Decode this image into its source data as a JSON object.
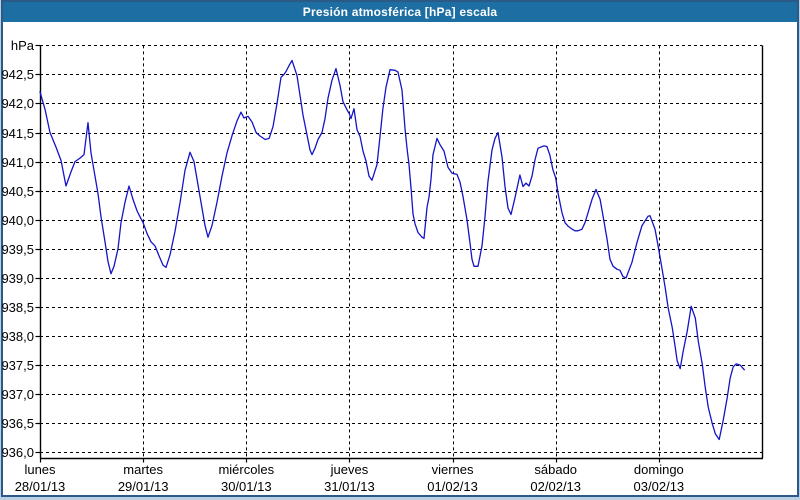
{
  "window": {
    "title": "Presión atmosférica [hPa] escala"
  },
  "colors": {
    "titlebar_bg": "#1d6fa3",
    "titlebar_text": "#ffffff",
    "window_border": "#2a5a85",
    "outer_bg": "#b9cfe6",
    "plot_bg": "#ffffff",
    "grid": "#000000",
    "series_line": "#1414c8",
    "text": "#000000"
  },
  "chart_data": {
    "type": "line",
    "title": "Presión atmosférica [hPa] escala",
    "ylabel": "hPa",
    "xlabel": "",
    "grid": "dashed",
    "legend": "none",
    "ylim": [
      935.9,
      943.0
    ],
    "y_tick_step": 0.5,
    "y_ticks": [
      {
        "value": 943.0,
        "label": ""
      },
      {
        "value": 942.5,
        "label": "942,5"
      },
      {
        "value": 942.0,
        "label": "942,0"
      },
      {
        "value": 941.5,
        "label": "941,5"
      },
      {
        "value": 941.0,
        "label": "941,0"
      },
      {
        "value": 940.5,
        "label": "940,5"
      },
      {
        "value": 940.0,
        "label": "940,0"
      },
      {
        "value": 939.5,
        "label": "939,5"
      },
      {
        "value": 939.0,
        "label": "939,0"
      },
      {
        "value": 938.5,
        "label": "938,5"
      },
      {
        "value": 938.0,
        "label": "938,0"
      },
      {
        "value": 937.5,
        "label": "937,5"
      },
      {
        "value": 937.0,
        "label": "937,0"
      },
      {
        "value": 936.5,
        "label": "936,5"
      },
      {
        "value": 936.0,
        "label": "936,0"
      }
    ],
    "x_days": [
      {
        "name": "lunes",
        "date": "28/01/13"
      },
      {
        "name": "martes",
        "date": "29/01/13"
      },
      {
        "name": "miércoles",
        "date": "30/01/13"
      },
      {
        "name": "jueves",
        "date": "31/01/13"
      },
      {
        "name": "viernes",
        "date": "01/02/13"
      },
      {
        "name": "sábado",
        "date": "02/02/13"
      },
      {
        "name": "domingo",
        "date": "03/02/13"
      }
    ],
    "xlim_days": [
      0,
      7
    ],
    "series": [
      {
        "name": "Presión atmosférica",
        "unit": "hPa",
        "color": "#1414c8",
        "points": [
          [
            0,
            942.2
          ],
          [
            0.048,
            941.9
          ],
          [
            0.097,
            941.5
          ],
          [
            0.155,
            941.25
          ],
          [
            0.204,
            941.02
          ],
          [
            0.252,
            940.58
          ],
          [
            0.3,
            940.82
          ],
          [
            0.339,
            941.0
          ],
          [
            0.388,
            941.06
          ],
          [
            0.427,
            941.12
          ],
          [
            0.465,
            941.67
          ],
          [
            0.494,
            941.15
          ],
          [
            0.524,
            940.85
          ],
          [
            0.562,
            940.45
          ],
          [
            0.591,
            940.05
          ],
          [
            0.63,
            939.62
          ],
          [
            0.659,
            939.28
          ],
          [
            0.688,
            939.07
          ],
          [
            0.717,
            939.2
          ],
          [
            0.756,
            939.5
          ],
          [
            0.785,
            939.95
          ],
          [
            0.824,
            940.3
          ],
          [
            0.863,
            940.58
          ],
          [
            0.902,
            940.35
          ],
          [
            0.941,
            940.15
          ],
          [
            0.97,
            940.05
          ],
          [
            1.0,
            939.95
          ],
          [
            1.038,
            939.76
          ],
          [
            1.076,
            939.62
          ],
          [
            1.115,
            939.55
          ],
          [
            1.154,
            939.38
          ],
          [
            1.193,
            939.22
          ],
          [
            1.222,
            939.18
          ],
          [
            1.261,
            939.4
          ],
          [
            1.309,
            939.8
          ],
          [
            1.358,
            940.3
          ],
          [
            1.406,
            940.85
          ],
          [
            1.454,
            941.16
          ],
          [
            1.493,
            941.0
          ],
          [
            1.532,
            940.6
          ],
          [
            1.571,
            940.2
          ],
          [
            1.6,
            939.9
          ],
          [
            1.629,
            939.7
          ],
          [
            1.668,
            939.9
          ],
          [
            1.716,
            940.3
          ],
          [
            1.765,
            940.75
          ],
          [
            1.813,
            941.15
          ],
          [
            1.862,
            941.45
          ],
          [
            1.91,
            941.7
          ],
          [
            1.949,
            941.85
          ],
          [
            1.978,
            941.75
          ],
          [
            2.017,
            941.78
          ],
          [
            2.056,
            941.68
          ],
          [
            2.095,
            941.5
          ],
          [
            2.133,
            941.44
          ],
          [
            2.182,
            941.38
          ],
          [
            2.221,
            941.4
          ],
          [
            2.259,
            941.6
          ],
          [
            2.298,
            942.0
          ],
          [
            2.337,
            942.45
          ],
          [
            2.366,
            942.5
          ],
          [
            2.385,
            942.55
          ],
          [
            2.414,
            942.65
          ],
          [
            2.443,
            942.74
          ],
          [
            2.492,
            942.48
          ],
          [
            2.521,
            942.14
          ],
          [
            2.55,
            941.8
          ],
          [
            2.589,
            941.46
          ],
          [
            2.618,
            941.2
          ],
          [
            2.637,
            941.12
          ],
          [
            2.666,
            941.23
          ],
          [
            2.695,
            941.38
          ],
          [
            2.734,
            941.5
          ],
          [
            2.763,
            941.74
          ],
          [
            2.792,
            942.09
          ],
          [
            2.831,
            942.4
          ],
          [
            2.87,
            942.6
          ],
          [
            2.909,
            942.31
          ],
          [
            2.938,
            942.03
          ],
          [
            2.977,
            941.89
          ],
          [
            3.0,
            941.82
          ],
          [
            3.015,
            941.74
          ],
          [
            3.044,
            941.91
          ],
          [
            3.073,
            941.55
          ],
          [
            3.103,
            941.43
          ],
          [
            3.132,
            941.18
          ],
          [
            3.161,
            941.01
          ],
          [
            3.19,
            940.75
          ],
          [
            3.219,
            940.68
          ],
          [
            3.267,
            940.95
          ],
          [
            3.296,
            941.43
          ],
          [
            3.325,
            941.91
          ],
          [
            3.355,
            942.28
          ],
          [
            3.393,
            942.58
          ],
          [
            3.442,
            942.57
          ],
          [
            3.471,
            942.54
          ],
          [
            3.51,
            942.23
          ],
          [
            3.539,
            941.57
          ],
          [
            3.558,
            941.23
          ],
          [
            3.578,
            940.95
          ],
          [
            3.597,
            940.55
          ],
          [
            3.616,
            940.1
          ],
          [
            3.636,
            939.93
          ],
          [
            3.665,
            939.78
          ],
          [
            3.704,
            939.7
          ],
          [
            3.723,
            939.68
          ],
          [
            3.752,
            940.21
          ],
          [
            3.772,
            940.4
          ],
          [
            3.791,
            940.7
          ],
          [
            3.81,
            941.12
          ],
          [
            3.849,
            941.4
          ],
          [
            3.878,
            941.29
          ],
          [
            3.917,
            941.18
          ],
          [
            3.956,
            940.9
          ],
          [
            3.995,
            940.8
          ],
          [
            4.043,
            940.78
          ],
          [
            4.072,
            940.65
          ],
          [
            4.101,
            940.4
          ],
          [
            4.14,
            940.0
          ],
          [
            4.169,
            939.6
          ],
          [
            4.188,
            939.32
          ],
          [
            4.208,
            939.2
          ],
          [
            4.247,
            939.2
          ],
          [
            4.285,
            939.55
          ],
          [
            4.314,
            940.05
          ],
          [
            4.343,
            940.65
          ],
          [
            4.382,
            941.2
          ],
          [
            4.411,
            941.4
          ],
          [
            4.44,
            941.5
          ],
          [
            4.479,
            941.08
          ],
          [
            4.508,
            940.57
          ],
          [
            4.537,
            940.2
          ],
          [
            4.566,
            940.09
          ],
          [
            4.605,
            940.38
          ],
          [
            4.653,
            940.77
          ],
          [
            4.683,
            940.57
          ],
          [
            4.712,
            940.63
          ],
          [
            4.741,
            940.58
          ],
          [
            4.77,
            940.75
          ],
          [
            4.799,
            941.03
          ],
          [
            4.828,
            941.23
          ],
          [
            4.886,
            941.27
          ],
          [
            4.915,
            941.26
          ],
          [
            4.944,
            941.11
          ],
          [
            4.973,
            940.86
          ],
          [
            5.0,
            940.72
          ],
          [
            5.022,
            940.46
          ],
          [
            5.061,
            940.12
          ],
          [
            5.09,
            939.95
          ],
          [
            5.119,
            939.89
          ],
          [
            5.158,
            939.84
          ],
          [
            5.187,
            939.81
          ],
          [
            5.216,
            939.81
          ],
          [
            5.255,
            939.84
          ],
          [
            5.284,
            939.95
          ],
          [
            5.313,
            940.12
          ],
          [
            5.352,
            940.35
          ],
          [
            5.391,
            940.52
          ],
          [
            5.43,
            940.35
          ],
          [
            5.459,
            940.06
          ],
          [
            5.497,
            939.67
          ],
          [
            5.526,
            939.32
          ],
          [
            5.556,
            939.2
          ],
          [
            5.594,
            939.15
          ],
          [
            5.623,
            939.13
          ],
          [
            5.652,
            939.02
          ],
          [
            5.682,
            939.0
          ],
          [
            5.74,
            939.27
          ],
          [
            5.788,
            939.61
          ],
          [
            5.837,
            939.9
          ],
          [
            5.895,
            940.06
          ],
          [
            5.914,
            940.07
          ],
          [
            5.963,
            939.84
          ],
          [
            5.992,
            939.56
          ],
          [
            6.033,
            939.13
          ],
          [
            6.062,
            938.82
          ],
          [
            6.091,
            938.48
          ],
          [
            6.13,
            938.14
          ],
          [
            6.159,
            937.8
          ],
          [
            6.178,
            937.57
          ],
          [
            6.207,
            937.44
          ],
          [
            6.236,
            937.74
          ],
          [
            6.275,
            938.08
          ],
          [
            6.314,
            938.51
          ],
          [
            6.353,
            938.31
          ],
          [
            6.382,
            937.91
          ],
          [
            6.421,
            937.51
          ],
          [
            6.45,
            937.11
          ],
          [
            6.479,
            936.77
          ],
          [
            6.518,
            936.49
          ],
          [
            6.547,
            936.32
          ],
          [
            6.585,
            936.22
          ],
          [
            6.624,
            936.55
          ],
          [
            6.663,
            936.94
          ],
          [
            6.692,
            937.28
          ],
          [
            6.721,
            937.47
          ],
          [
            6.75,
            937.52
          ],
          [
            6.789,
            937.5
          ],
          [
            6.828,
            937.42
          ]
        ]
      }
    ]
  }
}
